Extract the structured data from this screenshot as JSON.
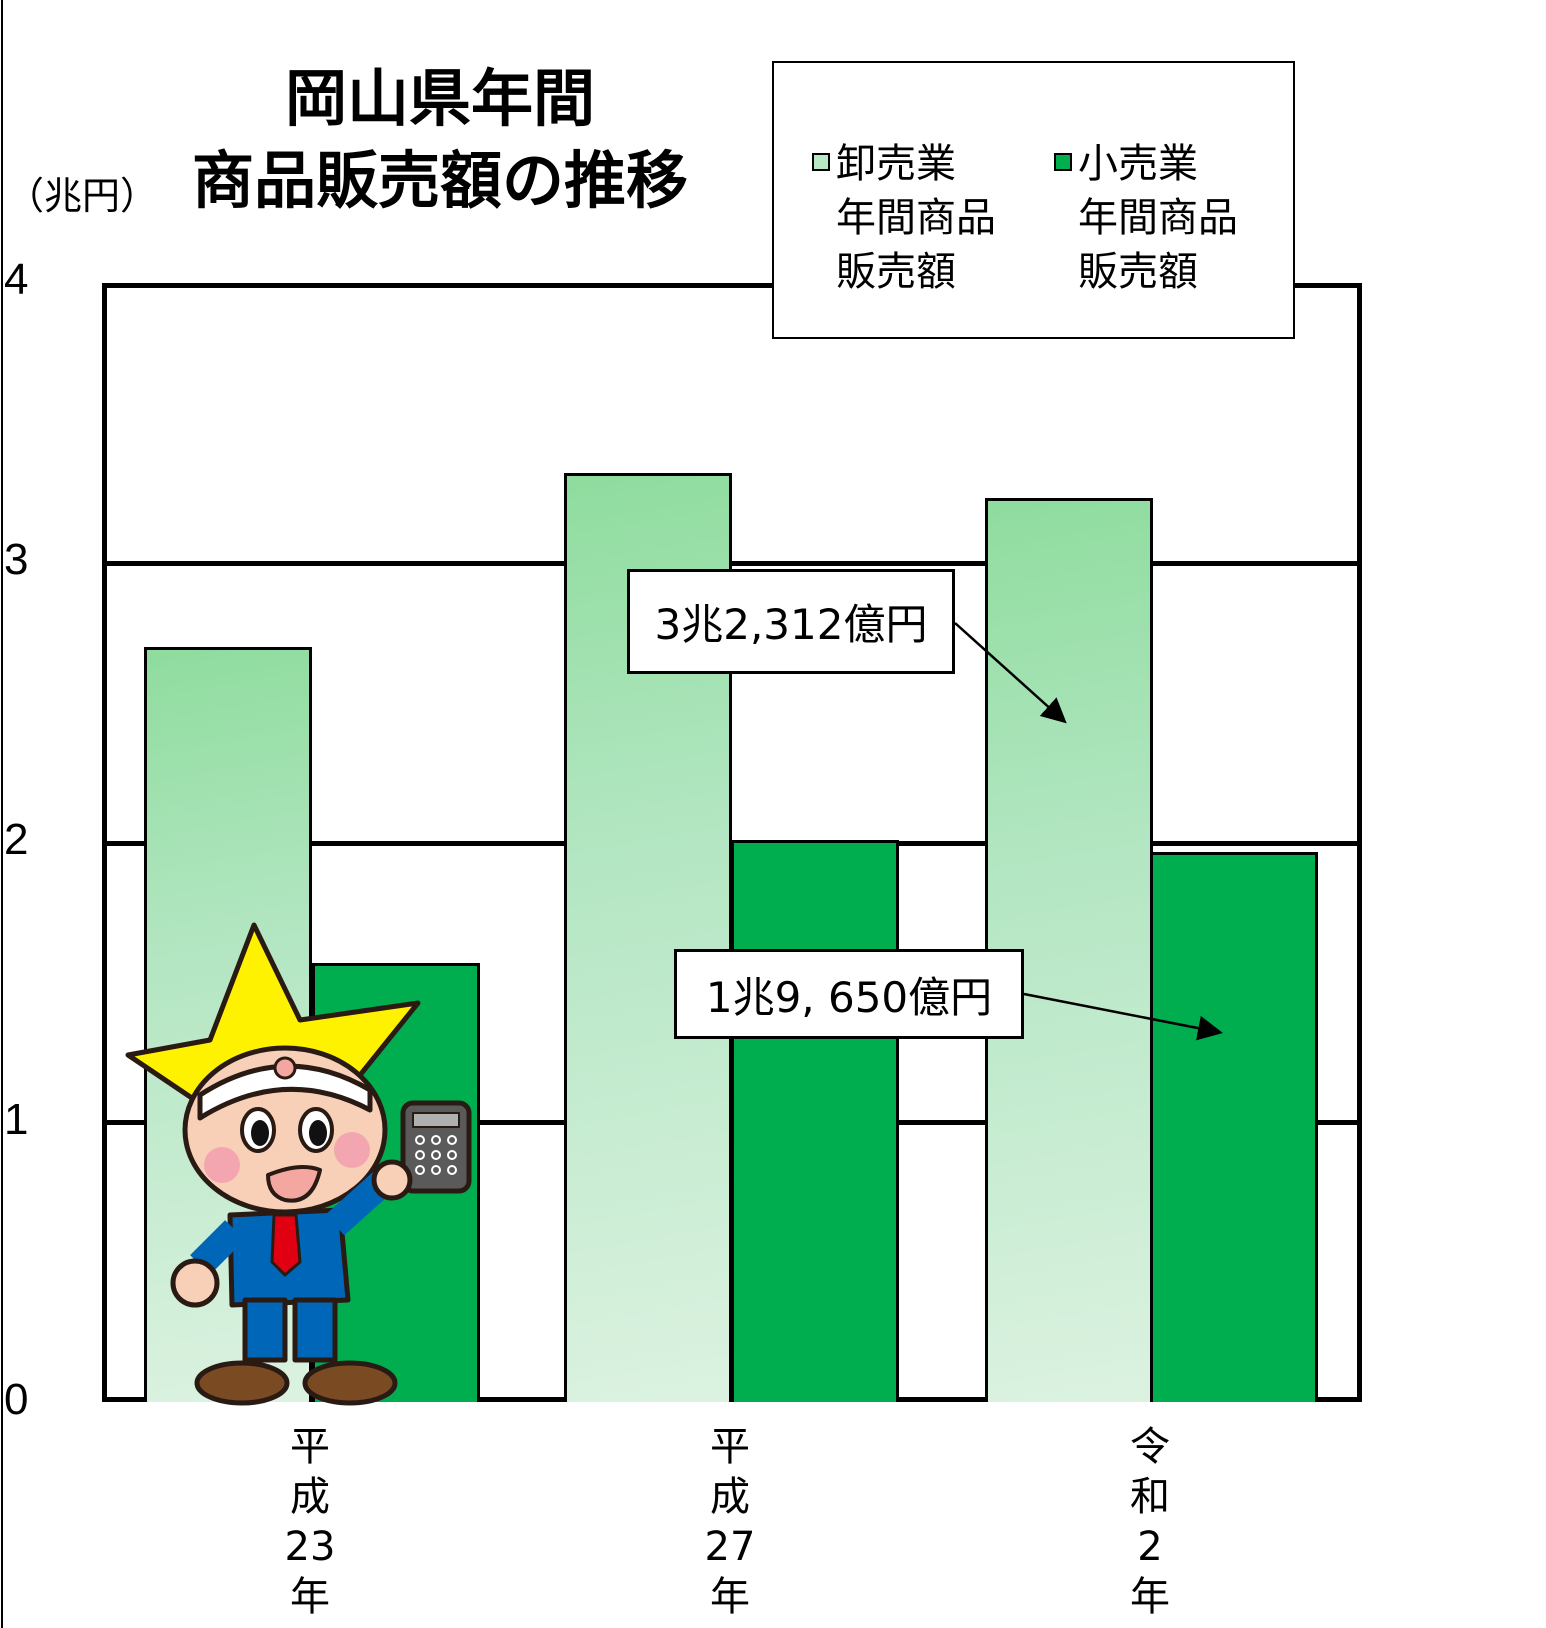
{
  "chart_data": {
    "type": "bar",
    "title": "岡山県年間\n商品販売額の推移",
    "title_lines": [
      "岡山県年間",
      "商品販売額の推移"
    ],
    "xlabel": "",
    "ylabel": "（兆円）",
    "ylim": [
      0,
      4
    ],
    "yticks": [
      "0",
      "1",
      "2",
      "3",
      "4"
    ],
    "grid": true,
    "legend_position": "top-right",
    "categories": [
      "平成23年",
      "平成27年",
      "令和2年"
    ],
    "category_labels_vertical": [
      "平\n成\n23\n年",
      "平\n成\n27\n年",
      "令\n和\n2\n年"
    ],
    "series": [
      {
        "name": "卸売業年間商品販売額",
        "legend_lines": "卸売業\n年間商品\n販売額",
        "color": "#a6e3b5",
        "values": [
          2.7,
          3.32,
          3.23
        ]
      },
      {
        "name": "小売業年間商品販売額",
        "legend_lines": "小売業\n年間商品\n販売額",
        "color": "#00ae4f",
        "values": [
          1.57,
          2.01,
          1.965
        ]
      }
    ],
    "annotations": [
      {
        "text": "3兆2,312億円",
        "target": "卸売業 令和2年"
      },
      {
        "text": "1兆9, 650億円",
        "target": "小売業 令和2年"
      }
    ]
  }
}
